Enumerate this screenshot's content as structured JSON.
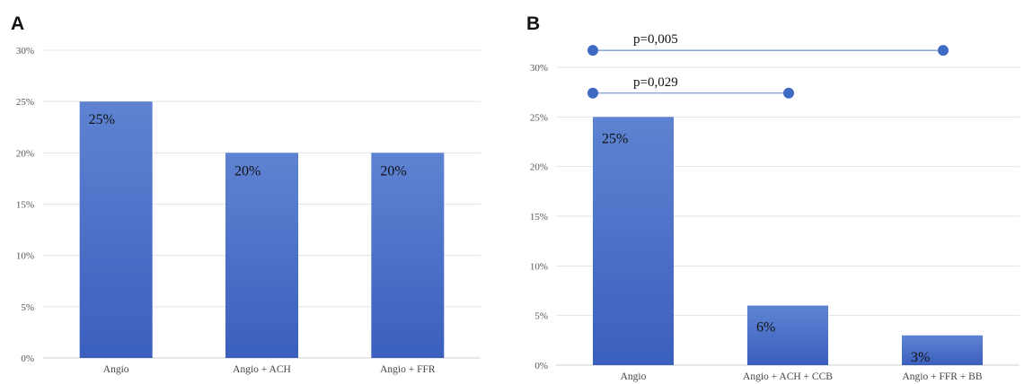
{
  "chart_data": [
    {
      "panel": "A",
      "type": "bar",
      "categories": [
        "Angio",
        "Angio + ACH",
        "Angio + FFR"
      ],
      "values": [
        25,
        20,
        20
      ],
      "value_labels": [
        "25%",
        "20%",
        "20%"
      ],
      "ylim": [
        0,
        30
      ],
      "yticks": [
        0,
        5,
        10,
        15,
        20,
        25,
        30
      ],
      "ytick_labels": [
        "0%",
        "5%",
        "10%",
        "15%",
        "20%",
        "25%",
        "30%"
      ],
      "grid": true,
      "bar_color": "#4a6fc7",
      "comparisons": []
    },
    {
      "panel": "B",
      "type": "bar",
      "categories": [
        "Angio",
        "Angio + ACH + CCB",
        "Angio + FFR + BB"
      ],
      "values": [
        25,
        6,
        3
      ],
      "value_labels": [
        "25%",
        "6%",
        "3%"
      ],
      "ylim": [
        0,
        30
      ],
      "yticks": [
        0,
        5,
        10,
        15,
        20,
        25,
        30
      ],
      "ytick_labels": [
        "0%",
        "5%",
        "10%",
        "15%",
        "20%",
        "25%",
        "30%"
      ],
      "grid": true,
      "bar_color": "#4a6fc7",
      "comparisons": [
        {
          "label": "p=0,005",
          "from": 0,
          "to": 2,
          "level": 31.7
        },
        {
          "label": "p=0,029",
          "from": 0,
          "to": 1,
          "level": 27.4
        }
      ]
    }
  ]
}
